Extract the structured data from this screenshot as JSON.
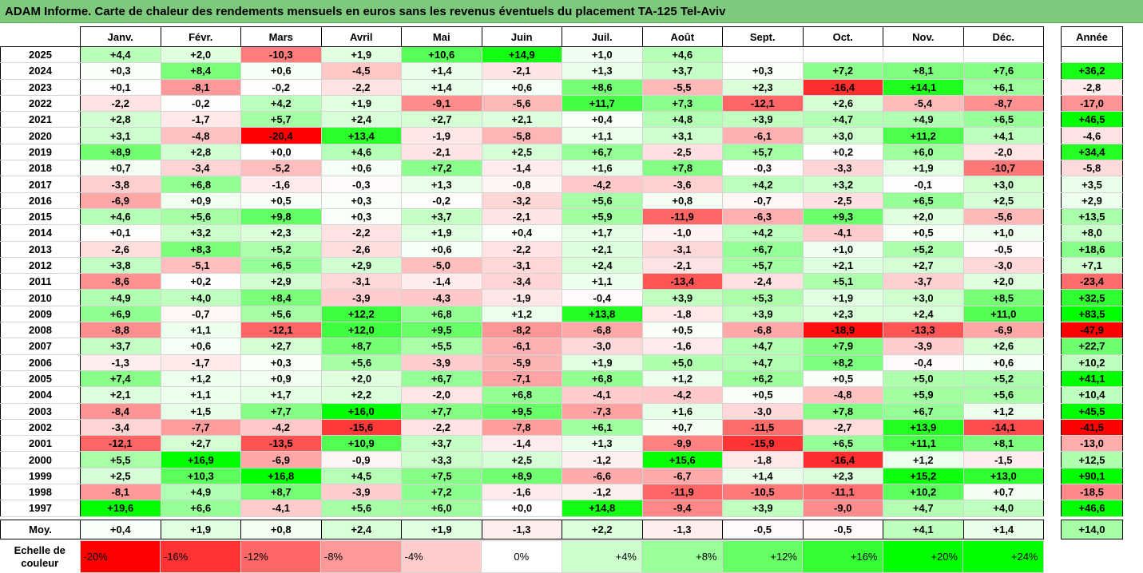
{
  "title": "ADAM Informe. Carte de chaleur des rendements mensuels en euros sans les revenus éventuels du placement TA-125 Tel-Aviv",
  "annual_header": "Année",
  "average_label": "Moy.",
  "scale_caption": "Echelle de couleur",
  "scale_labels": [
    "-20%",
    "-16%",
    "-12%",
    "-8%",
    "-4%",
    "0%",
    "+4%",
    "+8%",
    "+12%",
    "+16%",
    "+20%",
    "+24%"
  ],
  "colors": {
    "title_bar": "#7dca7d",
    "positive": "#00ff00",
    "negative": "#ff0000",
    "neutral": "#ffffff"
  },
  "chart_data": {
    "type": "heatmap",
    "title": "ADAM Informe. Carte de chaleur des rendements mensuels en euros sans les revenus éventuels du placement TA-125 Tel-Aviv",
    "x": [
      "Janv.",
      "Févr.",
      "Mars",
      "Avril",
      "Mai",
      "Juin",
      "Juil.",
      "Août",
      "Sept.",
      "Oct.",
      "Nov.",
      "Déc."
    ],
    "y": [
      "2025",
      "2024",
      "2023",
      "2022",
      "2021",
      "2020",
      "2019",
      "2018",
      "2017",
      "2016",
      "2015",
      "2014",
      "2013",
      "2012",
      "2011",
      "2010",
      "2009",
      "2008",
      "2007",
      "2006",
      "2005",
      "2004",
      "2003",
      "2002",
      "2001",
      "2000",
      "1999",
      "1998",
      "1997"
    ],
    "values": [
      [
        "+4,4",
        "+2,0",
        "-10,3",
        "+1,9",
        "+10,6",
        "+14,9",
        "+1,0",
        "+4,6",
        "",
        "",
        "",
        ""
      ],
      [
        "+0,3",
        "+8,4",
        "+0,6",
        "-4,5",
        "+1,4",
        "-2,1",
        "+1,3",
        "+3,7",
        "+0,3",
        "+7,2",
        "+8,1",
        "+7,6"
      ],
      [
        "+0,1",
        "-8,1",
        "-0,2",
        "-2,2",
        "+1,4",
        "+0,6",
        "+8,6",
        "-5,5",
        "+2,3",
        "-16,4",
        "+14,1",
        "+6,1"
      ],
      [
        "-2,2",
        "-0,2",
        "+4,2",
        "+1,9",
        "-9,1",
        "-5,6",
        "+11,7",
        "+7,3",
        "-12,1",
        "+2,6",
        "-5,4",
        "-8,7"
      ],
      [
        "+2,8",
        "-1,7",
        "+5,7",
        "+2,4",
        "+2,7",
        "+2,1",
        "+0,4",
        "+4,8",
        "+3,9",
        "+4,7",
        "+4,9",
        "+6,5"
      ],
      [
        "+3,1",
        "-4,8",
        "-20,4",
        "+13,4",
        "-1,9",
        "-5,8",
        "+1,1",
        "+3,1",
        "-6,1",
        "+3,0",
        "+11,2",
        "+4,1"
      ],
      [
        "+8,9",
        "+2,8",
        "+0,0",
        "+4,6",
        "-2,1",
        "+2,5",
        "+6,7",
        "-2,5",
        "+5,7",
        "+0,2",
        "+6,0",
        "-2,0"
      ],
      [
        "+0,7",
        "-3,4",
        "-5,2",
        "+0,6",
        "+7,2",
        "-1,4",
        "+1,6",
        "+7,8",
        "-0,3",
        "-3,3",
        "+1,9",
        "-10,7"
      ],
      [
        "-3,8",
        "+6,8",
        "-1,6",
        "-0,3",
        "+1,3",
        "-0,8",
        "-4,2",
        "-3,6",
        "+4,2",
        "+3,2",
        "-0,1",
        "+3,0"
      ],
      [
        "-6,9",
        "+0,9",
        "+0,5",
        "+0,3",
        "-0,2",
        "-3,2",
        "+5,6",
        "+0,8",
        "-0,7",
        "-2,5",
        "+6,5",
        "+2,5"
      ],
      [
        "+4,6",
        "+5,6",
        "+9,8",
        "+0,3",
        "+3,7",
        "-2,1",
        "+5,9",
        "-11,9",
        "-6,3",
        "+9,3",
        "+2,0",
        "-5,6"
      ],
      [
        "+0,1",
        "+3,2",
        "+2,3",
        "-2,2",
        "+1,9",
        "+0,4",
        "+1,7",
        "-1,0",
        "+4,2",
        "-4,1",
        "+0,5",
        "+1,0"
      ],
      [
        "-2,6",
        "+8,3",
        "+5,2",
        "-2,6",
        "+0,6",
        "-2,2",
        "+2,1",
        "-3,1",
        "+6,7",
        "+1,0",
        "+5,2",
        "-0,5"
      ],
      [
        "+3,8",
        "-5,1",
        "+6,5",
        "+2,9",
        "-5,0",
        "-3,1",
        "+2,4",
        "-2,1",
        "+5,7",
        "+2,1",
        "+2,7",
        "-3,0"
      ],
      [
        "-8,6",
        "+0,2",
        "+2,9",
        "-3,1",
        "-1,4",
        "-3,4",
        "+1,1",
        "-13,4",
        "-2,4",
        "+5,1",
        "-3,7",
        "+2,0"
      ],
      [
        "+4,9",
        "+4,0",
        "+8,4",
        "-3,9",
        "-4,3",
        "-1,9",
        "-0,4",
        "+3,9",
        "+5,3",
        "+1,9",
        "+3,0",
        "+8,5"
      ],
      [
        "+6,9",
        "-0,7",
        "+5,6",
        "+12,2",
        "+6,8",
        "+1,2",
        "+13,8",
        "-1,8",
        "+3,9",
        "+2,3",
        "+2,4",
        "+11,0"
      ],
      [
        "-8,8",
        "+1,1",
        "-12,1",
        "+12,0",
        "+9,5",
        "-8,2",
        "-6,8",
        "+0,5",
        "-6,8",
        "-18,9",
        "-13,3",
        "-6,9"
      ],
      [
        "+3,7",
        "+0,6",
        "+2,7",
        "+8,7",
        "+5,5",
        "-6,1",
        "-3,0",
        "-1,6",
        "+4,7",
        "+7,9",
        "-3,9",
        "+2,6"
      ],
      [
        "-1,3",
        "-1,7",
        "+0,3",
        "+5,6",
        "-3,9",
        "-5,9",
        "+1,9",
        "+5,0",
        "+4,7",
        "+8,2",
        "-0,4",
        "+0,6"
      ],
      [
        "+7,4",
        "+1,2",
        "+0,9",
        "+2,0",
        "+6,7",
        "-7,1",
        "+6,8",
        "+1,2",
        "+6,2",
        "+0,5",
        "+5,0",
        "+5,2"
      ],
      [
        "+2,1",
        "+1,1",
        "+1,7",
        "+2,2",
        "-2,0",
        "+6,8",
        "-4,1",
        "-4,2",
        "+0,5",
        "-4,8",
        "+5,9",
        "+5,6"
      ],
      [
        "-8,4",
        "+1,5",
        "+7,7",
        "+16,0",
        "+7,7",
        "+9,5",
        "-7,3",
        "+1,6",
        "-3,0",
        "+7,8",
        "+6,7",
        "+1,2"
      ],
      [
        "-3,4",
        "-7,7",
        "-4,2",
        "-15,6",
        "-2,2",
        "-7,8",
        "+6,1",
        "+0,7",
        "-11,5",
        "-2,7",
        "+13,9",
        "-14,1"
      ],
      [
        "-12,1",
        "+2,7",
        "-13,5",
        "+10,9",
        "+3,7",
        "-1,4",
        "+1,3",
        "-9,9",
        "-15,9",
        "+6,5",
        "+11,1",
        "+8,1"
      ],
      [
        "+5,5",
        "+16,9",
        "-6,9",
        "-0,9",
        "+3,3",
        "+2,5",
        "-1,2",
        "+15,6",
        "-1,8",
        "-16,4",
        "+1,2",
        "-1,5"
      ],
      [
        "+2,5",
        "+10,3",
        "+16,8",
        "+4,5",
        "+7,5",
        "+8,9",
        "-6,6",
        "-6,7",
        "+1,4",
        "+2,3",
        "+15,2",
        "+13,0"
      ],
      [
        "-8,1",
        "+4,9",
        "+8,7",
        "-3,9",
        "+7,2",
        "-1,6",
        "-1,2",
        "-11,9",
        "-10,5",
        "-11,1",
        "+10,2",
        "+0,7"
      ],
      [
        "+19,6",
        "+6,6",
        "-4,1",
        "+5,6",
        "+6,0",
        "+0,0",
        "+14,8",
        "-9,4",
        "+3,9",
        "-9,0",
        "+4,7",
        "+4,0"
      ]
    ],
    "annual": [
      "",
      "+36,2",
      "-2,8",
      "-17,0",
      "+46,5",
      "-4,6",
      "+34,4",
      "-5,8",
      "+3,5",
      "+2,9",
      "+13,5",
      "+8,0",
      "+18,6",
      "+7,1",
      "-23,4",
      "+32,5",
      "+83,5",
      "-47,9",
      "+22,7",
      "+10,2",
      "+41,1",
      "+10,4",
      "+45,5",
      "-41,5",
      "-13,0",
      "+12,5",
      "+90,1",
      "-18,5",
      "+46,6"
    ],
    "averages": [
      "+0,4",
      "+1,9",
      "+0,8",
      "+2,4",
      "+1,9",
      "-1,3",
      "+2,2",
      "-1,3",
      "-0,5",
      "-0,5",
      "+4,1",
      "+1,4"
    ],
    "average_annual": "+14,0",
    "color_scale": [
      -20,
      -16,
      -12,
      -8,
      -4,
      0,
      4,
      8,
      12,
      16,
      20,
      24
    ]
  }
}
